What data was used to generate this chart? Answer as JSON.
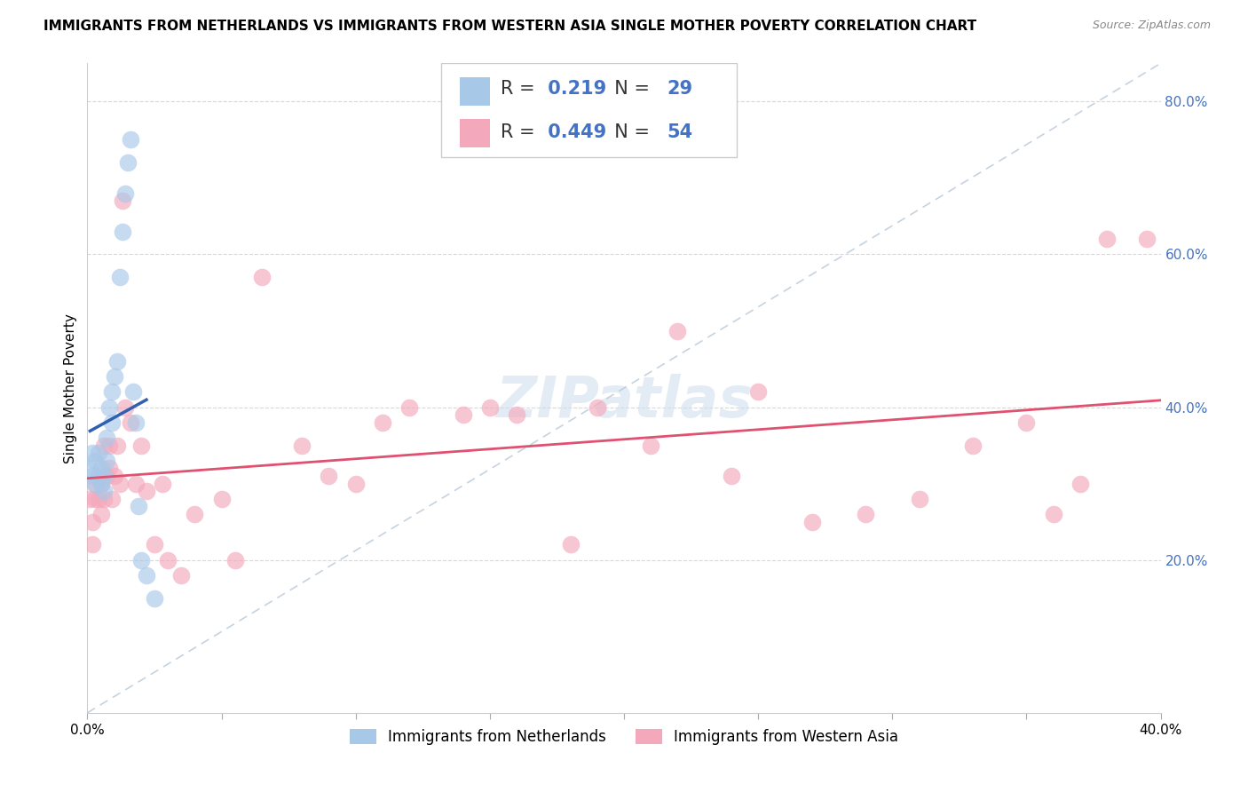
{
  "title": "IMMIGRANTS FROM NETHERLANDS VS IMMIGRANTS FROM WESTERN ASIA SINGLE MOTHER POVERTY CORRELATION CHART",
  "source": "Source: ZipAtlas.com",
  "ylabel": "Single Mother Poverty",
  "legend_label1": "Immigrants from Netherlands",
  "legend_label2": "Immigrants from Western Asia",
  "R1": 0.219,
  "N1": 29,
  "R2": 0.449,
  "N2": 54,
  "color_blue": "#a8c8e8",
  "color_pink": "#f4a8bc",
  "color_blue_line": "#3060b0",
  "color_pink_line": "#e05070",
  "color_diag": "#b8c8d8",
  "netherlands_x": [
    0.001,
    0.002,
    0.002,
    0.003,
    0.003,
    0.004,
    0.004,
    0.005,
    0.005,
    0.006,
    0.006,
    0.007,
    0.007,
    0.008,
    0.009,
    0.009,
    0.01,
    0.011,
    0.012,
    0.013,
    0.014,
    0.015,
    0.016,
    0.017,
    0.018,
    0.019,
    0.02,
    0.022,
    0.025
  ],
  "netherlands_y": [
    0.32,
    0.31,
    0.34,
    0.3,
    0.33,
    0.31,
    0.34,
    0.3,
    0.32,
    0.29,
    0.31,
    0.33,
    0.36,
    0.4,
    0.42,
    0.38,
    0.44,
    0.46,
    0.57,
    0.63,
    0.68,
    0.72,
    0.75,
    0.42,
    0.38,
    0.27,
    0.2,
    0.18,
    0.15
  ],
  "western_asia_x": [
    0.001,
    0.002,
    0.002,
    0.003,
    0.003,
    0.004,
    0.005,
    0.005,
    0.006,
    0.006,
    0.007,
    0.008,
    0.008,
    0.009,
    0.01,
    0.011,
    0.012,
    0.013,
    0.014,
    0.016,
    0.018,
    0.02,
    0.022,
    0.025,
    0.028,
    0.03,
    0.035,
    0.04,
    0.05,
    0.055,
    0.065,
    0.08,
    0.09,
    0.1,
    0.11,
    0.12,
    0.14,
    0.15,
    0.16,
    0.18,
    0.19,
    0.21,
    0.22,
    0.24,
    0.25,
    0.27,
    0.29,
    0.31,
    0.33,
    0.35,
    0.36,
    0.37,
    0.38,
    0.395
  ],
  "western_asia_y": [
    0.28,
    0.25,
    0.22,
    0.28,
    0.3,
    0.28,
    0.3,
    0.26,
    0.28,
    0.35,
    0.31,
    0.32,
    0.35,
    0.28,
    0.31,
    0.35,
    0.3,
    0.67,
    0.4,
    0.38,
    0.3,
    0.35,
    0.29,
    0.22,
    0.3,
    0.2,
    0.18,
    0.26,
    0.28,
    0.2,
    0.57,
    0.35,
    0.31,
    0.3,
    0.38,
    0.4,
    0.39,
    0.4,
    0.39,
    0.22,
    0.4,
    0.35,
    0.5,
    0.31,
    0.42,
    0.25,
    0.26,
    0.28,
    0.35,
    0.38,
    0.26,
    0.3,
    0.62,
    0.62
  ],
  "xlim": [
    0.0,
    0.4
  ],
  "ylim": [
    0.0,
    0.85
  ],
  "yticks": [
    0.2,
    0.4,
    0.6,
    0.8
  ],
  "ytick_labels": [
    "20.0%",
    "40.0%",
    "60.0%",
    "80.0%"
  ],
  "background_color": "#ffffff",
  "watermark": "ZIPatlas",
  "title_fontsize": 11,
  "axis_label_fontsize": 11,
  "tick_fontsize": 11
}
